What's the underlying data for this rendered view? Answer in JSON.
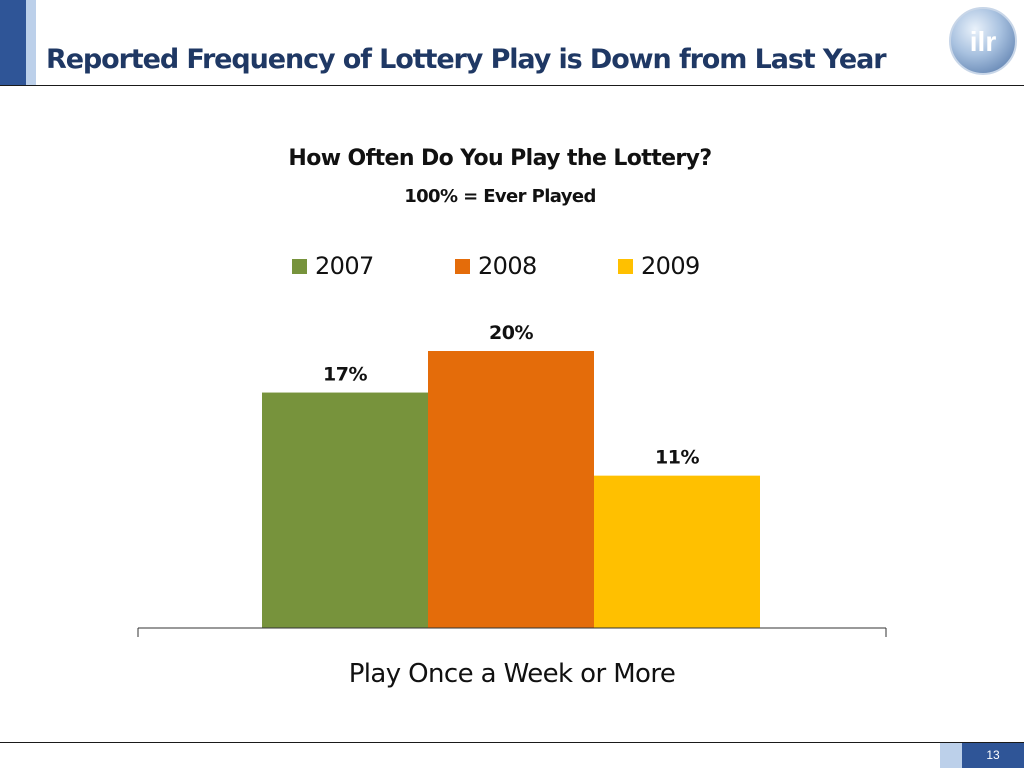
{
  "slide": {
    "title": "Reported Frequency of Lottery Play is Down from Last Year",
    "page_number": "13",
    "logo_text": "ilr"
  },
  "colors": {
    "accent_dark": "#2f5597",
    "accent_light": "#bcd0ea",
    "title_text": "#1f3864"
  },
  "chart_data": {
    "type": "bar",
    "title": "How Often Do You Play the Lottery?",
    "subtitle": "100% = Ever Played",
    "categories": [
      "Play Once a Week or More"
    ],
    "series": [
      {
        "name": "2007",
        "values": [
          17
        ],
        "label": "17%",
        "color": "#77933c"
      },
      {
        "name": "2008",
        "values": [
          20
        ],
        "label": "20%",
        "color": "#e46c0a"
      },
      {
        "name": "2009",
        "values": [
          11
        ],
        "label": "11%",
        "color": "#ffc000"
      }
    ],
    "ylim": [
      0,
      20
    ],
    "legend": "top-center",
    "grid": false,
    "xlabel": "",
    "ylabel": ""
  }
}
